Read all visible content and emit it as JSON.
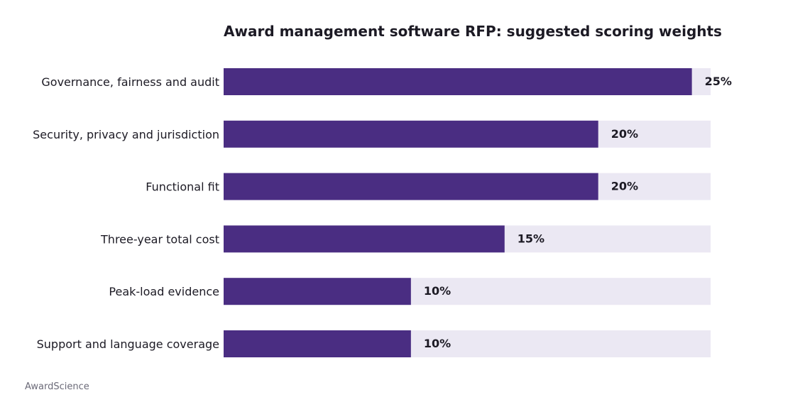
{
  "chart_data": {
    "type": "bar",
    "orientation": "horizontal",
    "title": "Award management software RFP: suggested scoring weights",
    "categories": [
      "Governance, fairness and audit",
      "Security, privacy and jurisdiction",
      "Functional fit",
      "Three-year total cost",
      "Peak-load evidence",
      "Support and language coverage"
    ],
    "values": [
      25,
      20,
      20,
      15,
      10,
      10
    ],
    "value_labels": [
      "25%",
      "20%",
      "20%",
      "15%",
      "10%",
      "10%"
    ],
    "unit": "%",
    "xlim": [
      0,
      26
    ],
    "grid": false,
    "legend": "none",
    "colors": {
      "bar": "#4a2d82",
      "track": "#ebe8f3",
      "text": "#1c1a24",
      "source": "#6b6a78"
    }
  },
  "source": "AwardScience"
}
